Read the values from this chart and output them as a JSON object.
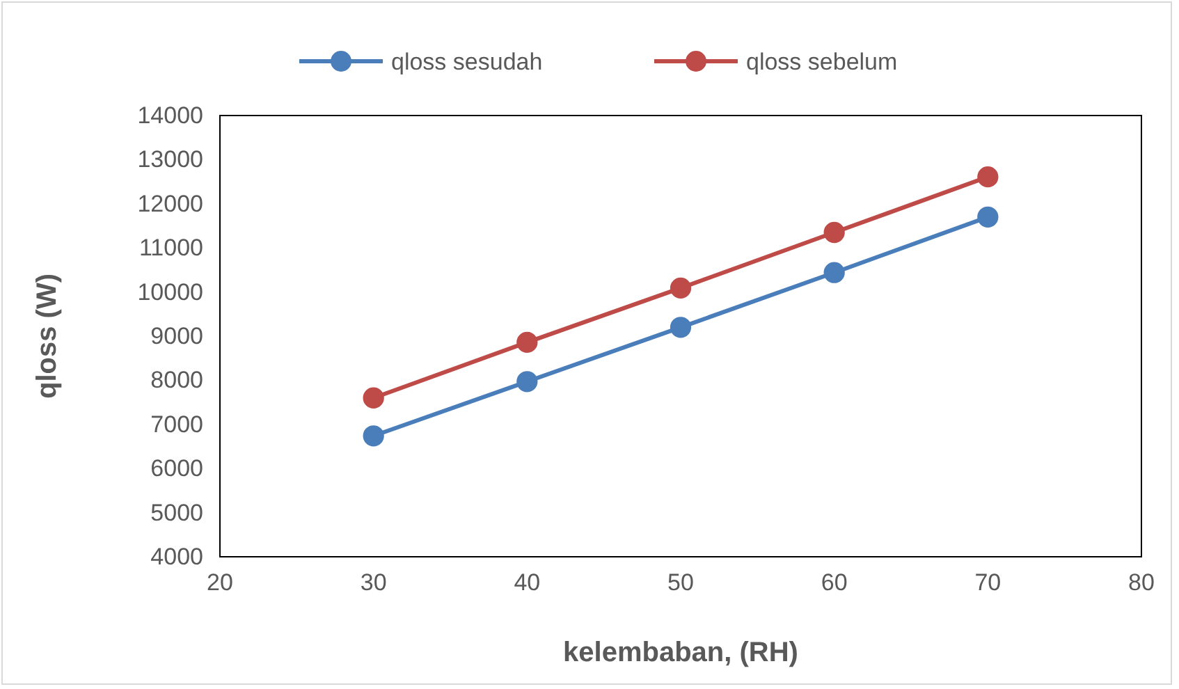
{
  "chart_data": {
    "type": "line",
    "xlabel": "kelembaban, (RH)",
    "ylabel": "qloss (W)",
    "x": [
      30,
      40,
      50,
      60,
      70
    ],
    "series": [
      {
        "name": "qloss sesudah",
        "color": "#4a7ebb",
        "values": [
          6740,
          7970,
          9200,
          10440,
          11700
        ]
      },
      {
        "name": "qloss sebelum",
        "color": "#be4b48",
        "values": [
          7600,
          8860,
          10090,
          11350,
          12610
        ]
      }
    ],
    "xlim": [
      20,
      80
    ],
    "xticks": [
      20,
      30,
      40,
      50,
      60,
      70,
      80
    ],
    "ylim": [
      4000,
      14000
    ],
    "yticks": [
      4000,
      5000,
      6000,
      7000,
      8000,
      9000,
      10000,
      11000,
      12000,
      13000,
      14000
    ],
    "grid": false,
    "legend": "top",
    "marker": "circle",
    "line_style": "solid"
  }
}
